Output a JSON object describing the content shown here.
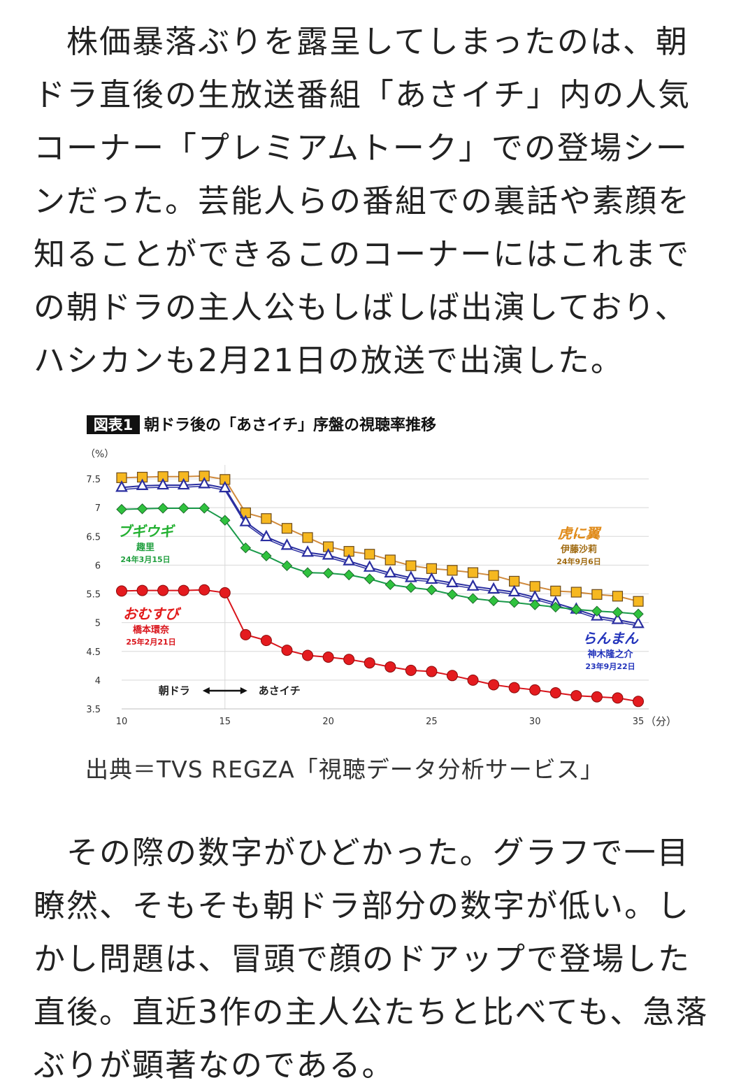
{
  "article": {
    "para1_lines": [
      "　株価暴落ぶりを露呈してしまったのは、朝",
      "ドラ直後の生放送番組「あさイチ」内の人気",
      "コーナー「プレミアムトーク」での登場シー",
      "ンだった。芸能人らの番組での裏話や素顔を",
      "知ることができるこのコーナーにはこれまで",
      "の朝ドラの主人公もしばしば出演しており、",
      "ハシカンも2月21日の放送で出演した。"
    ],
    "para2_lines": [
      "　その際の数字がひどかった。グラフで一目",
      "瞭然、そもそも朝ドラ部分の数字が低い。し",
      "かし問題は、冒頭で顔のドアップで登場した",
      "直後。直近3作の主人公たちと比べても、急落",
      "ぶりが顕著なのである。"
    ]
  },
  "figure": {
    "badge": "図表1",
    "title": "朝ドラ後の「あさイチ」序盤の視聴率推移",
    "caption": "出典＝TVS REGZA「視聴データ分析サービス」"
  },
  "chart_data": {
    "type": "line",
    "title": "朝ドラ後の「あさイチ」序盤の視聴率推移",
    "ylabel": "（%）",
    "xlabel": "（分）",
    "xlim": [
      10,
      35
    ],
    "ylim": [
      3.5,
      7.5
    ],
    "x_ticks": [
      "10",
      "15",
      "20",
      "25",
      "30",
      "35"
    ],
    "y_ticks": [
      "3.5",
      "4",
      "4.5",
      "5",
      "5.5",
      "6",
      "6.5",
      "7",
      "7.5"
    ],
    "grid": true,
    "x": [
      10,
      11,
      12,
      13,
      14,
      15,
      16,
      17,
      18,
      19,
      20,
      21,
      22,
      23,
      24,
      25,
      26,
      27,
      28,
      29,
      30,
      31,
      32,
      33,
      34,
      35
    ],
    "annotation": {
      "left": "朝ドラ",
      "right": "あさイチ",
      "arrow_at_x": 15
    },
    "series": [
      {
        "name": "虎に翼",
        "actor": "伊藤沙莉",
        "date": "24年9月6日",
        "color": "#d08a3c",
        "fill": "#f6b820",
        "marker": "square",
        "values": [
          7.52,
          7.53,
          7.54,
          7.54,
          7.55,
          7.49,
          6.91,
          6.81,
          6.64,
          6.48,
          6.32,
          6.24,
          6.19,
          6.09,
          5.99,
          5.94,
          5.91,
          5.87,
          5.82,
          5.72,
          5.63,
          5.55,
          5.53,
          5.49,
          5.46,
          5.37
        ]
      },
      {
        "name": "らんまん",
        "actor": "神木隆之介",
        "date": "23年9月22日",
        "color": "#2a2ea0",
        "fill": "#ffffff",
        "marker": "triangle",
        "values": [
          7.35,
          7.38,
          7.39,
          7.39,
          7.41,
          7.34,
          6.75,
          6.49,
          6.34,
          6.22,
          6.17,
          6.07,
          5.96,
          5.86,
          5.78,
          5.75,
          5.69,
          5.63,
          5.58,
          5.53,
          5.44,
          5.34,
          5.23,
          5.11,
          5.05,
          4.98
        ]
      },
      {
        "name": "ブギウギ",
        "actor": "趣里",
        "date": "24年3月15日",
        "color": "#1a9a4a",
        "fill": "#2fc23e",
        "marker": "diamond",
        "values": [
          6.97,
          6.98,
          6.99,
          6.99,
          6.99,
          6.78,
          6.3,
          6.16,
          5.99,
          5.87,
          5.86,
          5.83,
          5.76,
          5.66,
          5.61,
          5.57,
          5.49,
          5.42,
          5.38,
          5.35,
          5.31,
          5.27,
          5.23,
          5.2,
          5.18,
          5.15
        ]
      },
      {
        "name": "おむすび",
        "actor": "橋本環奈",
        "date": "25年2月21日",
        "color": "#d9141b",
        "fill": "#e41b1f",
        "marker": "circle",
        "values": [
          5.55,
          5.56,
          5.56,
          5.56,
          5.57,
          5.52,
          4.79,
          4.69,
          4.52,
          4.43,
          4.4,
          4.36,
          4.3,
          4.23,
          4.17,
          4.15,
          4.08,
          4.0,
          3.92,
          3.87,
          3.83,
          3.78,
          3.73,
          3.71,
          3.69,
          3.63
        ]
      }
    ]
  }
}
